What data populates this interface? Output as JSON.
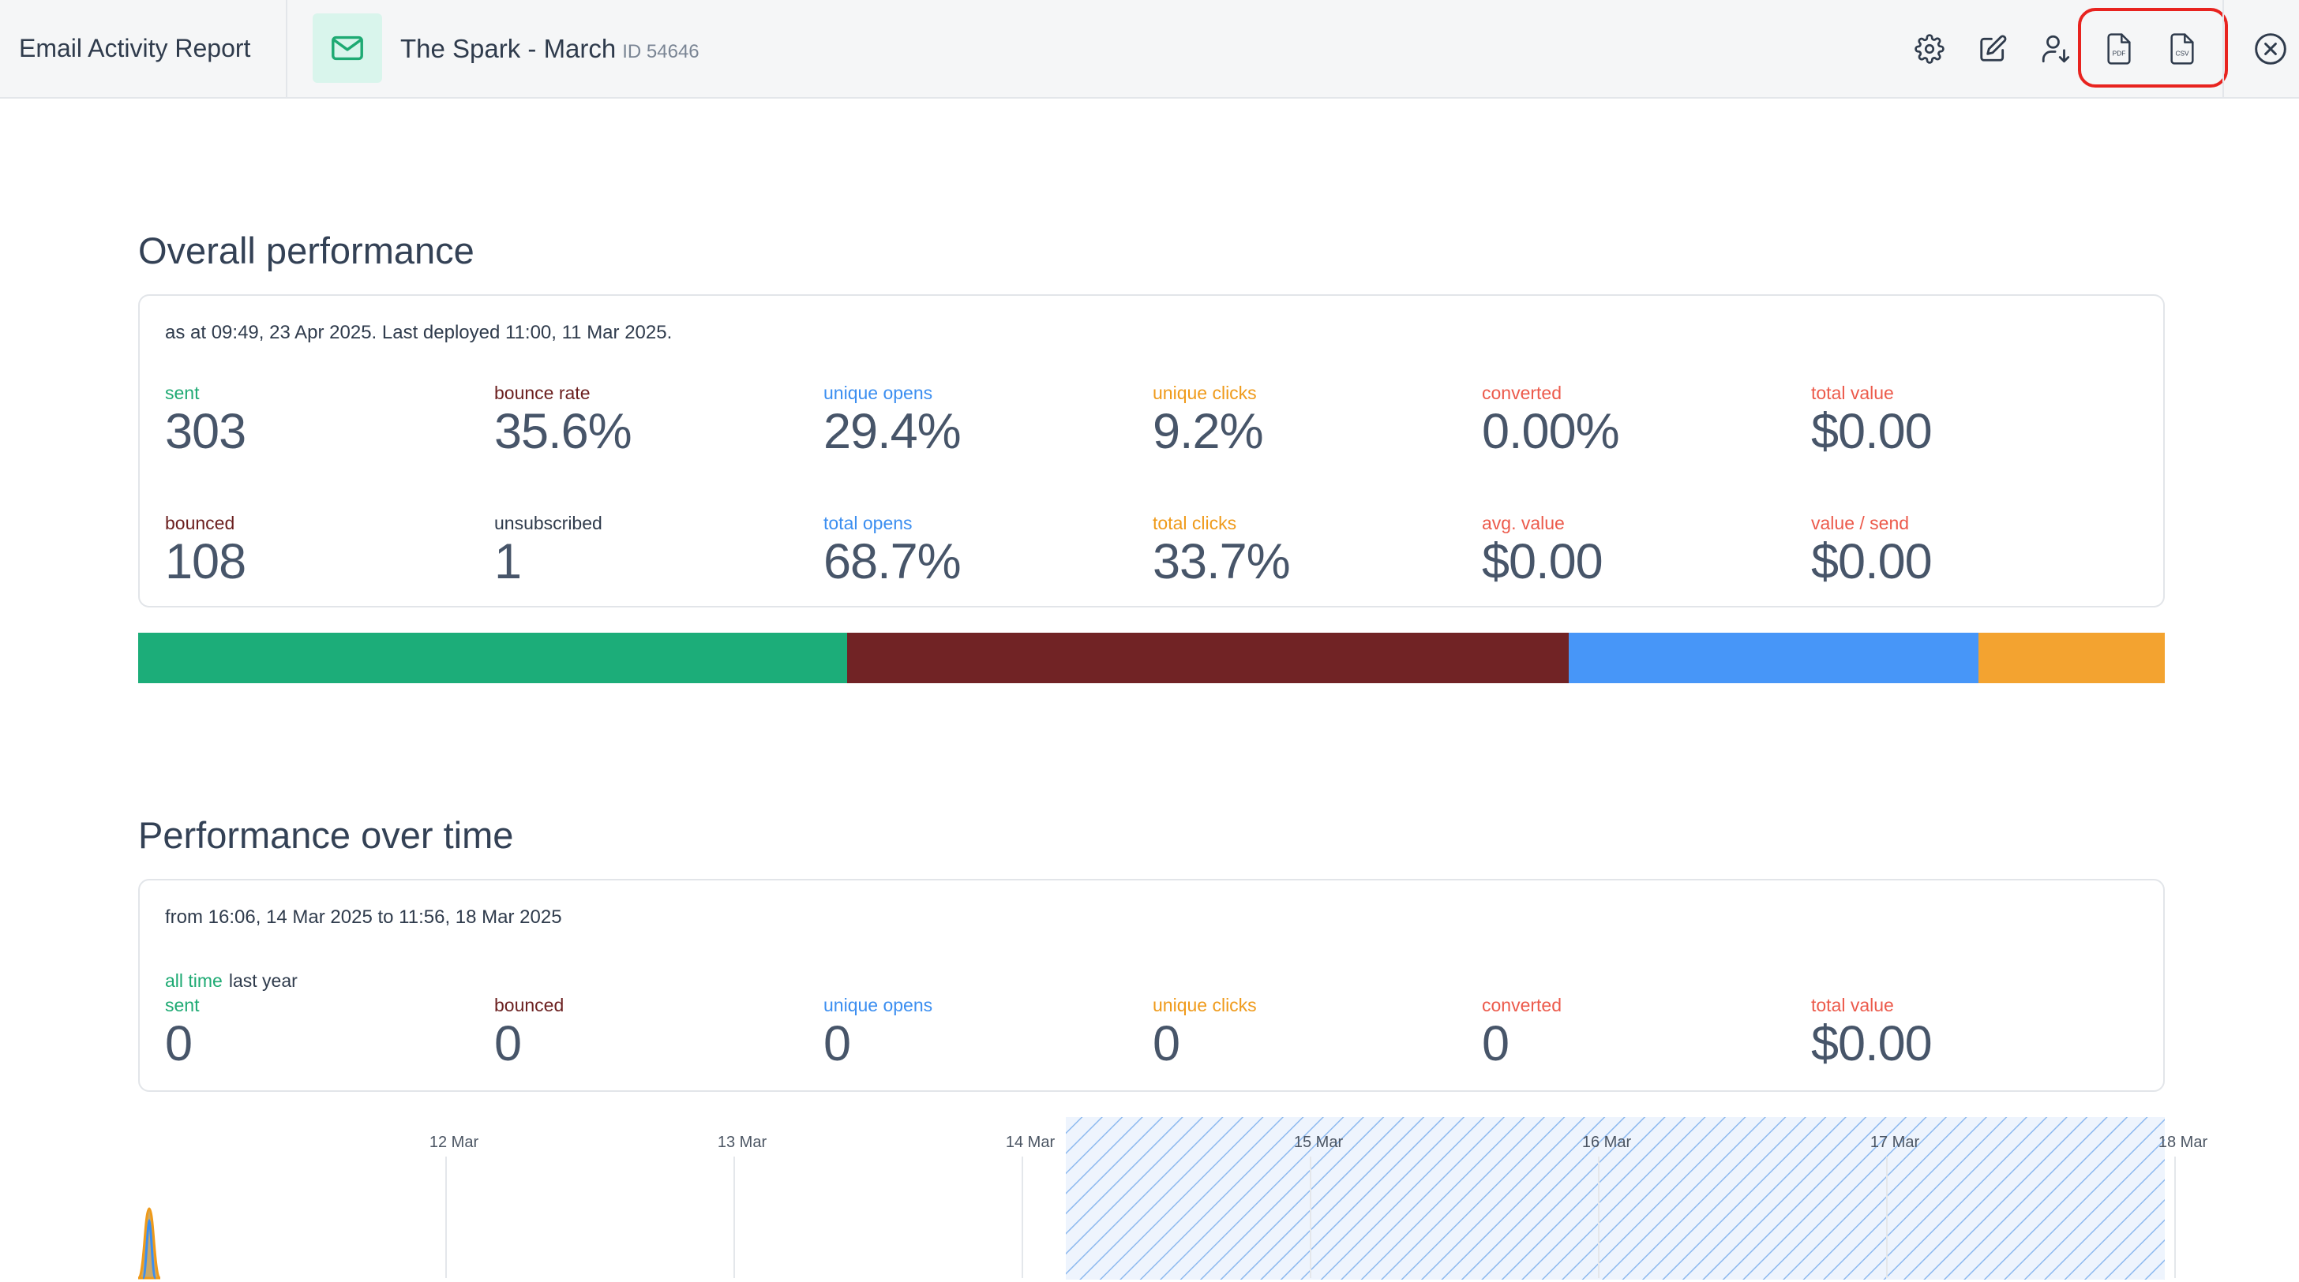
{
  "header": {
    "app_title": "Email Activity Report",
    "campaign_name": "The Spark - March",
    "campaign_id": "ID 54646",
    "tools": [
      "gear-icon",
      "edit-icon",
      "user-download-icon",
      "pdf-export-icon",
      "csv-export-icon",
      "close-circle-icon"
    ],
    "pdf_icon_text": "PDF",
    "csv_icon_text": "CSV",
    "accent_color": "#1eaa73",
    "highlight_color": "#e8231f"
  },
  "overall": {
    "title": "Overall performance",
    "meta": "as at 09:49, 23 Apr 2025. Last deployed 11:00, 11 Mar 2025.",
    "stats_row1": [
      {
        "label": "sent",
        "value": "303",
        "color": "#1eaa73"
      },
      {
        "label": "bounce rate",
        "value": "35.6%",
        "color": "#6b1f1f"
      },
      {
        "label": "unique opens",
        "value": "29.4%",
        "color": "#3b8ef0"
      },
      {
        "label": "unique clicks",
        "value": "9.2%",
        "color": "#ef9a1a"
      },
      {
        "label": "converted",
        "value": "0.00%",
        "color": "#ec5a4b"
      },
      {
        "label": "total value",
        "value": "$0.00",
        "color": "#ec5a4b"
      }
    ],
    "stats_row2": [
      {
        "label": "bounced",
        "value": "108",
        "color": "#6b1f1f"
      },
      {
        "label": "unsubscribed",
        "value": "1",
        "color": "#2f3b4c"
      },
      {
        "label": "total opens",
        "value": "68.7%",
        "color": "#3b8ef0"
      },
      {
        "label": "total clicks",
        "value": "33.7%",
        "color": "#ef9a1a"
      },
      {
        "label": "avg. value",
        "value": "$0.00",
        "color": "#ec5a4b"
      },
      {
        "label": "value / send",
        "value": "$0.00",
        "color": "#ec5a4b"
      }
    ],
    "bar_segments": [
      {
        "name": "sent",
        "fraction": 0.35,
        "color": "#1cad79"
      },
      {
        "name": "bounced",
        "fraction": 0.356,
        "color": "#712325"
      },
      {
        "name": "unique opens",
        "fraction": 0.202,
        "color": "#4796f8"
      },
      {
        "name": "unique clicks",
        "fraction": 0.092,
        "color": "#f3a330"
      }
    ]
  },
  "over_time": {
    "title": "Performance over time",
    "meta": "from 16:06, 14 Mar 2025 to 11:56, 18 Mar 2025",
    "range_all": "all time",
    "range_year": "last year",
    "stats": [
      {
        "label": "sent",
        "value": "0",
        "color": "#1eaa73"
      },
      {
        "label": "bounced",
        "value": "0",
        "color": "#6b1f1f"
      },
      {
        "label": "unique opens",
        "value": "0",
        "color": "#3b8ef0"
      },
      {
        "label": "unique clicks",
        "value": "0",
        "color": "#ef9a1a"
      },
      {
        "label": "converted",
        "value": "0",
        "color": "#ec5a4b"
      },
      {
        "label": "total value",
        "value": "$0.00",
        "color": "#ec5a4b"
      }
    ]
  },
  "chart_data": {
    "type": "area",
    "x_ticks": [
      "12 Mar",
      "13 Mar",
      "14 Mar",
      "15 Mar",
      "16 Mar",
      "17 Mar",
      "18 Mar"
    ],
    "x_range": [
      "11 Mar",
      "18 Mar"
    ],
    "selected_range": [
      "14 Mar",
      "18 Mar"
    ],
    "selection_color": "#3b8ef0",
    "series_colors": [
      "#ef9a1a",
      "#3b8ef0"
    ]
  }
}
